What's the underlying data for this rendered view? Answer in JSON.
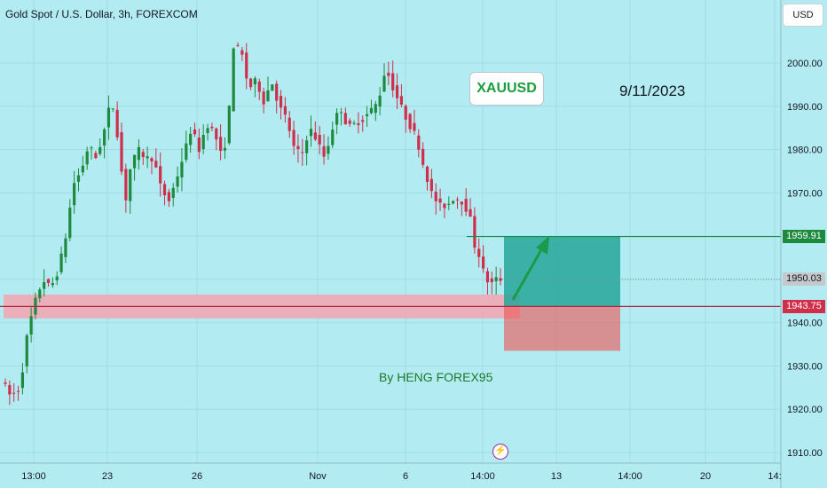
{
  "header": {
    "title": "Gold Spot / U.S. Dollar, 3h, FOREXCOM",
    "currency": "USD"
  },
  "annotations": {
    "symbol": "XAUUSD",
    "date": "9/11/2023",
    "author": "By HENG FOREX95"
  },
  "price_tags": {
    "target": "1959.91",
    "current": "1950.03",
    "support": "1943.75"
  },
  "colors": {
    "background": "#b2ebf2",
    "up": "#1e8a3e",
    "down": "#d12e4a",
    "profit_zone": "#26a69a",
    "loss_zone": "#ef5350",
    "support_band": "#f4a3b1"
  },
  "chart_data": {
    "type": "candlestick",
    "title": "Gold Spot / U.S. Dollar, 3h, FOREXCOM",
    "ylim": [
      1906,
      2012
    ],
    "y_ticks": [
      1910,
      1920,
      1930,
      1940,
      1950,
      1960,
      1970,
      1980,
      1990,
      2000
    ],
    "x_ticks": [
      "13:00",
      "23",
      "26",
      "Nov",
      "6",
      "14:00",
      "13",
      "14:00",
      "20",
      "14:"
    ],
    "candle_count": 116,
    "path": [
      [
        0,
        1927
      ],
      [
        5,
        1923
      ],
      [
        10,
        1925
      ],
      [
        14,
        1938
      ],
      [
        18,
        1945
      ],
      [
        22,
        1950
      ],
      [
        26,
        1948
      ],
      [
        30,
        1952
      ],
      [
        34,
        1960
      ],
      [
        38,
        1972
      ],
      [
        42,
        1975
      ],
      [
        46,
        1981
      ],
      [
        50,
        1978
      ],
      [
        54,
        1984
      ],
      [
        58,
        1992
      ],
      [
        62,
        1981
      ],
      [
        65,
        1967
      ],
      [
        68,
        1976
      ],
      [
        72,
        1980
      ],
      [
        76,
        1978
      ],
      [
        80,
        1978
      ],
      [
        84,
        1971
      ],
      [
        88,
        1968
      ],
      [
        92,
        1973
      ],
      [
        96,
        1979
      ],
      [
        100,
        1985
      ],
      [
        104,
        1980
      ],
      [
        108,
        1986
      ],
      [
        112,
        1984
      ],
      [
        116,
        1978
      ],
      [
        119,
        1984
      ],
      [
        122,
        2004
      ],
      [
        126,
        2003
      ],
      [
        130,
        1994
      ],
      [
        134,
        1996
      ],
      [
        138,
        1991
      ],
      [
        142,
        1996
      ],
      [
        146,
        1990
      ],
      [
        150,
        1987
      ],
      [
        154,
        1980
      ],
      [
        158,
        1979
      ],
      [
        162,
        1985
      ],
      [
        166,
        1982
      ],
      [
        170,
        1978
      ],
      [
        174,
        1985
      ],
      [
        178,
        1990
      ],
      [
        182,
        1985
      ],
      [
        186,
        1986
      ],
      [
        190,
        1987
      ],
      [
        194,
        1989
      ],
      [
        198,
        1991
      ],
      [
        202,
        1999
      ],
      [
        206,
        1994
      ],
      [
        210,
        1990
      ],
      [
        214,
        1986
      ],
      [
        218,
        1983
      ],
      [
        222,
        1976
      ],
      [
        226,
        1970
      ],
      [
        230,
        1967
      ],
      [
        234,
        1967
      ],
      [
        238,
        1969
      ],
      [
        242,
        1968
      ],
      [
        246,
        1965
      ],
      [
        249,
        1957
      ],
      [
        252,
        1955
      ],
      [
        254,
        1950
      ],
      [
        258,
        1949
      ],
      [
        260,
        1950
      ]
    ],
    "trade_setup": {
      "target_price": 1959.91,
      "entry_price": 1943.75,
      "stop_price": 1933.5,
      "support_zone": [
        1941,
        1946.5
      ]
    }
  }
}
